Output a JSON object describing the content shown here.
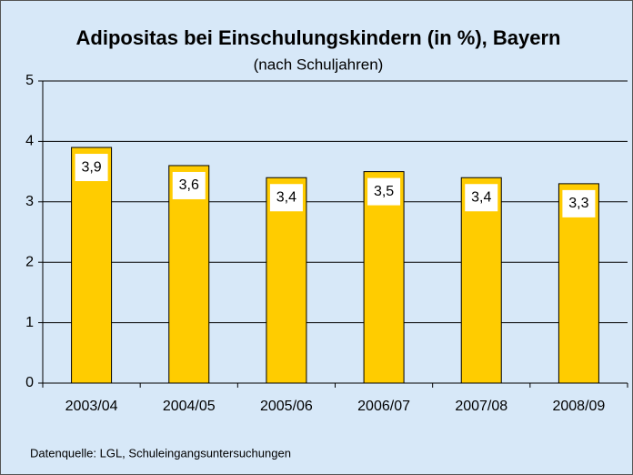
{
  "chart_data": {
    "type": "bar",
    "title": "Adipositas bei Einschulungskindern (in %), Bayern",
    "subtitle": "(nach Schuljahren)",
    "categories": [
      "2003/04",
      "2004/05",
      "2005/06",
      "2006/07",
      "2007/08",
      "2008/09"
    ],
    "values": [
      3.9,
      3.6,
      3.4,
      3.5,
      3.4,
      3.3
    ],
    "value_labels": [
      "3,9",
      "3,6",
      "3,4",
      "3,5",
      "3,4",
      "3,3"
    ],
    "color": "#ffcc00",
    "ylim": [
      0,
      5
    ],
    "yticks": [
      0,
      1,
      2,
      3,
      4,
      5
    ],
    "grid": true,
    "source": "Datenquelle: LGL, Schuleingangsuntersuchungen"
  }
}
